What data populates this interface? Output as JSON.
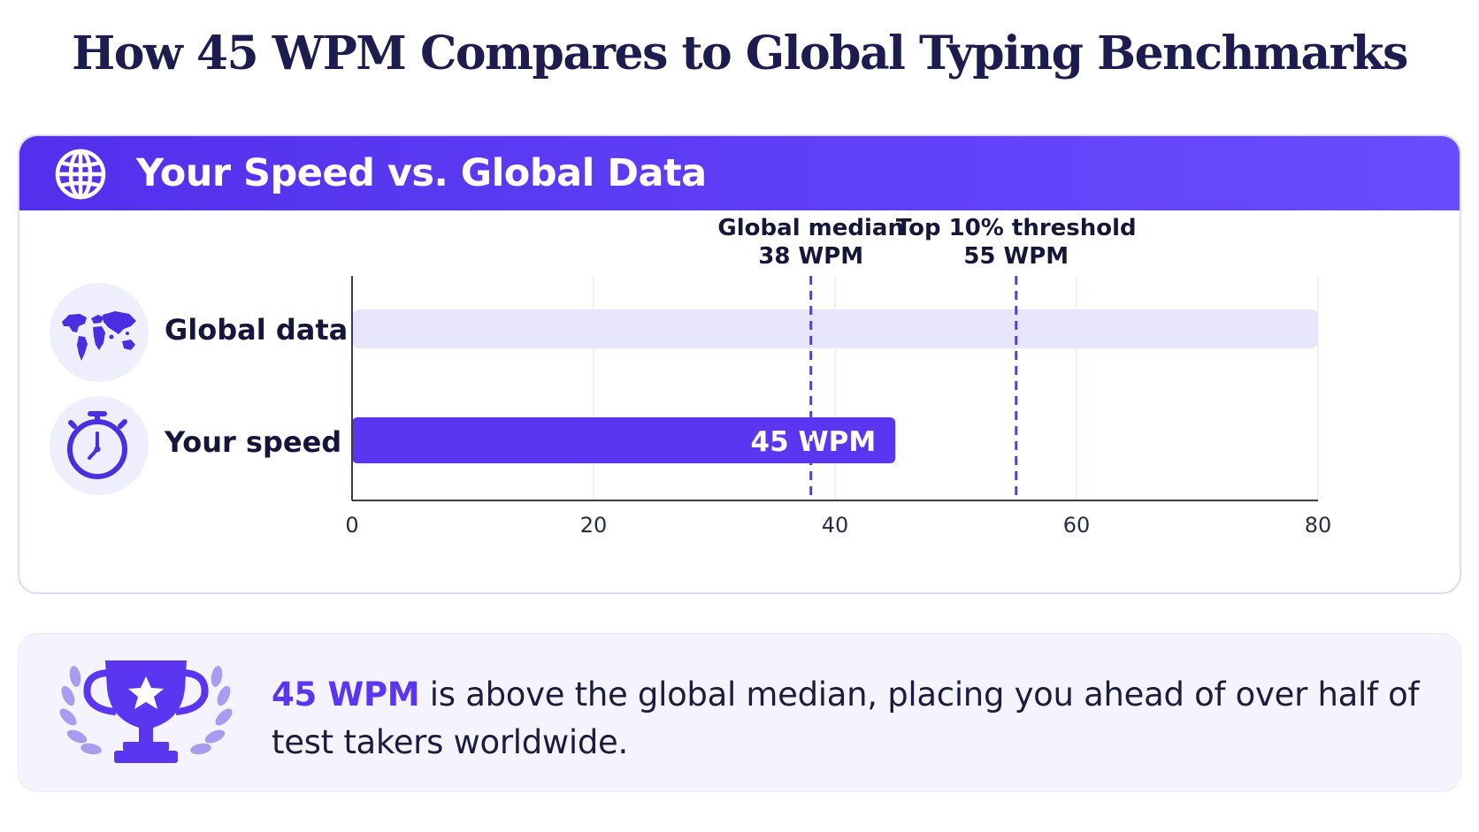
{
  "page_title": "How 45 WPM Compares to Global Typing Benchmarks",
  "card": {
    "title": "Your Speed vs. Global Data",
    "icon": "globe-icon"
  },
  "rows": [
    {
      "label": "Global data",
      "icon": "world-map-icon"
    },
    {
      "label": "Your speed",
      "icon": "stopwatch-icon"
    }
  ],
  "colors": {
    "accent": "#5a36f0",
    "header": "#5230ec",
    "global_bar": "#e7e5f9",
    "reference_line": "#5a36f0"
  },
  "chart_data": {
    "type": "bar",
    "orientation": "horizontal",
    "categories": [
      "Global data",
      "Your speed"
    ],
    "series": [
      {
        "values": [
          80,
          45
        ]
      }
    ],
    "bar_labels": [
      "",
      "45 WPM"
    ],
    "xlim": [
      0,
      80
    ],
    "xticks": [
      0,
      20,
      40,
      60,
      80
    ],
    "reference_lines": [
      {
        "label": "Global median",
        "value_label": "38 WPM",
        "value": 38
      },
      {
        "label": "Top 10% threshold",
        "value_label": "55 WPM",
        "value": 55
      }
    ],
    "grid": true
  },
  "insight": {
    "highlight": "45 WPM",
    "text": " is above the global median, placing you ahead of over half of test takers worldwide.",
    "icon": "trophy-icon"
  }
}
